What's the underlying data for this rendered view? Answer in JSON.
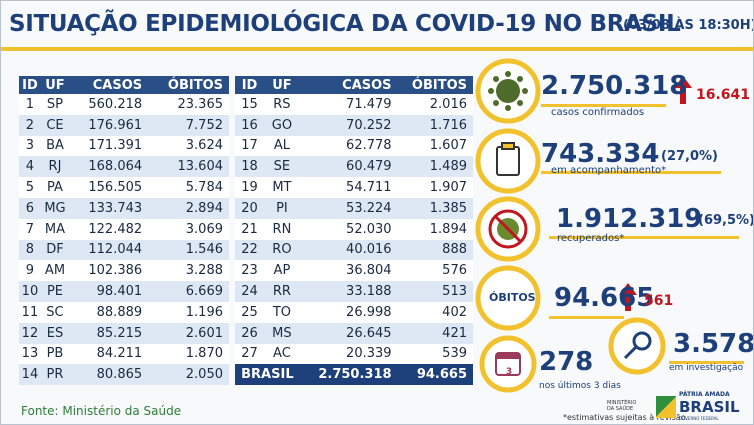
{
  "header": {
    "title": "SITUAÇÃO EPIDEMIOLÓGICA DA COVID-19 NO BRASIL",
    "date": "(03/08 ÀS 18:30H)"
  },
  "table": {
    "left": {
      "columns": [
        "ID",
        "UF",
        "CASOS",
        "ÓBITOS"
      ],
      "rows": [
        [
          "1",
          "SP",
          "560.218",
          "23.365"
        ],
        [
          "2",
          "CE",
          "176.961",
          "7.752"
        ],
        [
          "3",
          "BA",
          "171.391",
          "3.624"
        ],
        [
          "4",
          "RJ",
          "168.064",
          "13.604"
        ],
        [
          "5",
          "PA",
          "156.505",
          "5.784"
        ],
        [
          "6",
          "MG",
          "133.743",
          "2.894"
        ],
        [
          "7",
          "MA",
          "122.482",
          "3.069"
        ],
        [
          "8",
          "DF",
          "112.044",
          "1.546"
        ],
        [
          "9",
          "AM",
          "102.386",
          "3.288"
        ],
        [
          "10",
          "PE",
          "98.401",
          "6.669"
        ],
        [
          "11",
          "SC",
          "88.889",
          "1.196"
        ],
        [
          "12",
          "ES",
          "85.215",
          "2.601"
        ],
        [
          "13",
          "PB",
          "84.211",
          "1.870"
        ],
        [
          "14",
          "PR",
          "80.865",
          "2.050"
        ]
      ]
    },
    "right": {
      "columns": [
        "ID",
        "UF",
        "CASOS",
        "ÓBITOS"
      ],
      "rows": [
        [
          "15",
          "RS",
          "71.479",
          "2.016"
        ],
        [
          "16",
          "GO",
          "70.252",
          "1.716"
        ],
        [
          "17",
          "AL",
          "62.778",
          "1.607"
        ],
        [
          "18",
          "SE",
          "60.479",
          "1.489"
        ],
        [
          "19",
          "MT",
          "54.711",
          "1.907"
        ],
        [
          "20",
          "PI",
          "53.224",
          "1.385"
        ],
        [
          "21",
          "RN",
          "52.030",
          "1.894"
        ],
        [
          "22",
          "RO",
          "40.016",
          "888"
        ],
        [
          "23",
          "AP",
          "36.804",
          "576"
        ],
        [
          "24",
          "RR",
          "33.188",
          "513"
        ],
        [
          "25",
          "TO",
          "26.998",
          "402"
        ],
        [
          "26",
          "MS",
          "26.645",
          "421"
        ],
        [
          "27",
          "AC",
          "20.339",
          "539"
        ]
      ],
      "total": [
        "BRASIL",
        "2.750.318",
        "94.665"
      ]
    }
  },
  "stats": {
    "confirmed": {
      "value": "2.750.318",
      "delta": "16.641",
      "label": "casos confirmados"
    },
    "monitoring": {
      "value": "743.334",
      "percent": "(27,0%)",
      "label": "em acompanhamento*"
    },
    "recovered": {
      "value": "1.912.319",
      "percent": "(69,5%)",
      "label": "recuperados*"
    },
    "deaths": {
      "label": "ÓBITOS",
      "value": "94.665",
      "delta": "561"
    },
    "last_days": {
      "icon": "3",
      "value": "278",
      "label": "nos últimos 3 dias"
    },
    "investigation": {
      "value": "3.578",
      "label": "em investigação"
    }
  },
  "footer": {
    "source": "Fonte: Ministério da Saúde",
    "note": "*estimativas sujeitas à revisão.",
    "ministry": "MINISTÉRIO DA SAÚDE",
    "motto": "PÁTRIA AMADA",
    "brand": "BRASIL",
    "government": "GOVERNO FEDERAL"
  }
}
